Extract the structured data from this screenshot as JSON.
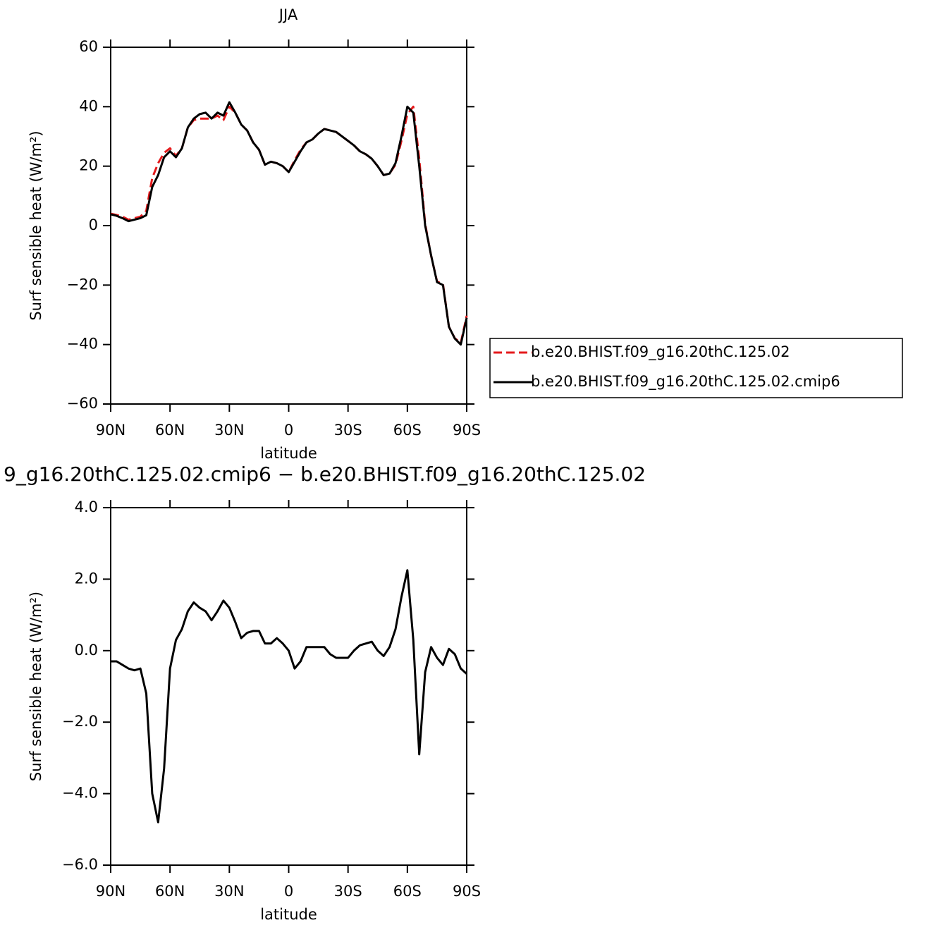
{
  "chart_data": [
    {
      "type": "line",
      "title": "JJA",
      "x_label": "latitude",
      "y_label": "Surf sensible heat (W/m²)",
      "x": [
        90,
        87,
        84,
        81,
        78,
        75,
        72,
        69,
        66,
        63,
        60,
        57,
        54,
        51,
        48,
        45,
        42,
        39,
        36,
        33,
        30,
        27,
        24,
        21,
        18,
        15,
        12,
        9,
        6,
        3,
        0,
        -3,
        -6,
        -9,
        -12,
        -15,
        -18,
        -21,
        -24,
        -27,
        -30,
        -33,
        -36,
        -39,
        -42,
        -45,
        -48,
        -51,
        -54,
        -57,
        -60,
        -63,
        -66,
        -69,
        -72,
        -75,
        -78,
        -81,
        -84,
        -87,
        -90
      ],
      "xlim": [
        90,
        -90
      ],
      "xticks": [
        {
          "value": 90,
          "label": "90N"
        },
        {
          "value": 60,
          "label": "60N"
        },
        {
          "value": 30,
          "label": "30N"
        },
        0,
        {
          "value": -30,
          "label": "30S"
        },
        {
          "value": -60,
          "label": "60S"
        },
        {
          "value": -90,
          "label": "90S"
        }
      ],
      "ylim": [
        -60,
        60
      ],
      "yticks": [
        {
          "value": -60,
          "label": "−60"
        },
        {
          "value": -40,
          "label": "−40"
        },
        {
          "value": -20,
          "label": "−20"
        },
        0,
        20,
        40,
        60
      ],
      "legend": "right",
      "series": [
        {
          "name": "b.e20.BHIST.f09_g16.20thC.125.02",
          "color": "#e41a1c",
          "dash": true,
          "values": [
            4,
            3.6,
            3,
            2,
            2.5,
            3,
            5,
            16,
            21,
            24.5,
            26,
            23.5,
            26,
            33,
            35.5,
            36,
            36,
            36,
            37,
            35.5,
            40,
            38,
            34,
            32,
            28,
            25.5,
            20.5,
            21.5,
            21,
            20,
            18,
            22,
            25.5,
            28,
            29,
            31,
            32.5,
            32,
            31.5,
            30,
            28.5,
            27,
            25,
            24,
            22.5,
            20,
            17,
            17.5,
            20.5,
            28.5,
            37.5,
            40,
            22.5,
            0.6,
            -10.1,
            -18.8,
            -19.6,
            -34,
            -37.9,
            -39.5,
            -30.3
          ]
        },
        {
          "name": "b.e20.BHIST.f09_g16.20thC.125.02.cmip6",
          "color": "#000000",
          "dash": false,
          "values": [
            3.8,
            3.3,
            2.5,
            1.5,
            2,
            2.5,
            3.5,
            13,
            17,
            23,
            25,
            23,
            26,
            33,
            36,
            37.5,
            38,
            36,
            38,
            37,
            41.5,
            38,
            34,
            32,
            28,
            25.5,
            20.5,
            21.5,
            21,
            20,
            18,
            21.5,
            25,
            28,
            29,
            31,
            32.5,
            32,
            31.5,
            30,
            28.5,
            27,
            25,
            24,
            22.5,
            20,
            17,
            17.5,
            21,
            30,
            40,
            38,
            20,
            0,
            -10,
            -19,
            -20,
            -34,
            -38,
            -40,
            -31
          ]
        }
      ]
    },
    {
      "type": "line",
      "title": "9_g16.20thC.125.02.cmip6 − b.e20.BHIST.f09_g16.20thC.125.02",
      "x_label": "latitude",
      "y_label": "Surf sensible heat (W/m²)",
      "x": [
        90,
        87,
        84,
        81,
        78,
        75,
        72,
        69,
        66,
        63,
        60,
        57,
        54,
        51,
        48,
        45,
        42,
        39,
        36,
        33,
        30,
        27,
        24,
        21,
        18,
        15,
        12,
        9,
        6,
        3,
        0,
        -3,
        -6,
        -9,
        -12,
        -15,
        -18,
        -21,
        -24,
        -27,
        -30,
        -33,
        -36,
        -39,
        -42,
        -45,
        -48,
        -51,
        -54,
        -57,
        -60,
        -63,
        -66,
        -69,
        -72,
        -75,
        -78,
        -81,
        -84,
        -87,
        -90
      ],
      "xlim": [
        90,
        -90
      ],
      "xticks": [
        {
          "value": 90,
          "label": "90N"
        },
        {
          "value": 60,
          "label": "60N"
        },
        {
          "value": 30,
          "label": "30N"
        },
        0,
        {
          "value": -30,
          "label": "30S"
        },
        {
          "value": -60,
          "label": "60S"
        },
        {
          "value": -90,
          "label": "90S"
        }
      ],
      "ylim": [
        -6,
        4
      ],
      "yticks": [
        {
          "value": -6,
          "label": "−6.0"
        },
        {
          "value": -4,
          "label": "−4.0"
        },
        {
          "value": -2,
          "label": "−2.0"
        },
        {
          "value": 0,
          "label": "0.0"
        },
        {
          "value": 2,
          "label": "2.0"
        },
        {
          "value": 4,
          "label": "4.0"
        }
      ],
      "series": [
        {
          "color": "#000000",
          "dash": false,
          "values": [
            -0.3,
            -0.3,
            -0.4,
            -0.5,
            -0.55,
            -0.5,
            -1.2,
            -4,
            -4.8,
            -3.3,
            -0.5,
            0.3,
            0.6,
            1.1,
            1.35,
            1.2,
            1.1,
            0.85,
            1.1,
            1.4,
            1.2,
            0.8,
            0.35,
            0.5,
            0.55,
            0.55,
            0.2,
            0.2,
            0.35,
            0.2,
            0,
            -0.5,
            -0.3,
            0.1,
            0.1,
            0.1,
            0.1,
            -0.1,
            -0.2,
            -0.2,
            -0.2,
            0,
            0.15,
            0.2,
            0.25,
            0,
            -0.15,
            0.1,
            0.6,
            1.5,
            2.25,
            0.3,
            -2.9,
            -0.6,
            0.1,
            -0.2,
            -0.4,
            0.05,
            -0.1,
            -0.5,
            -0.65
          ]
        }
      ]
    }
  ]
}
